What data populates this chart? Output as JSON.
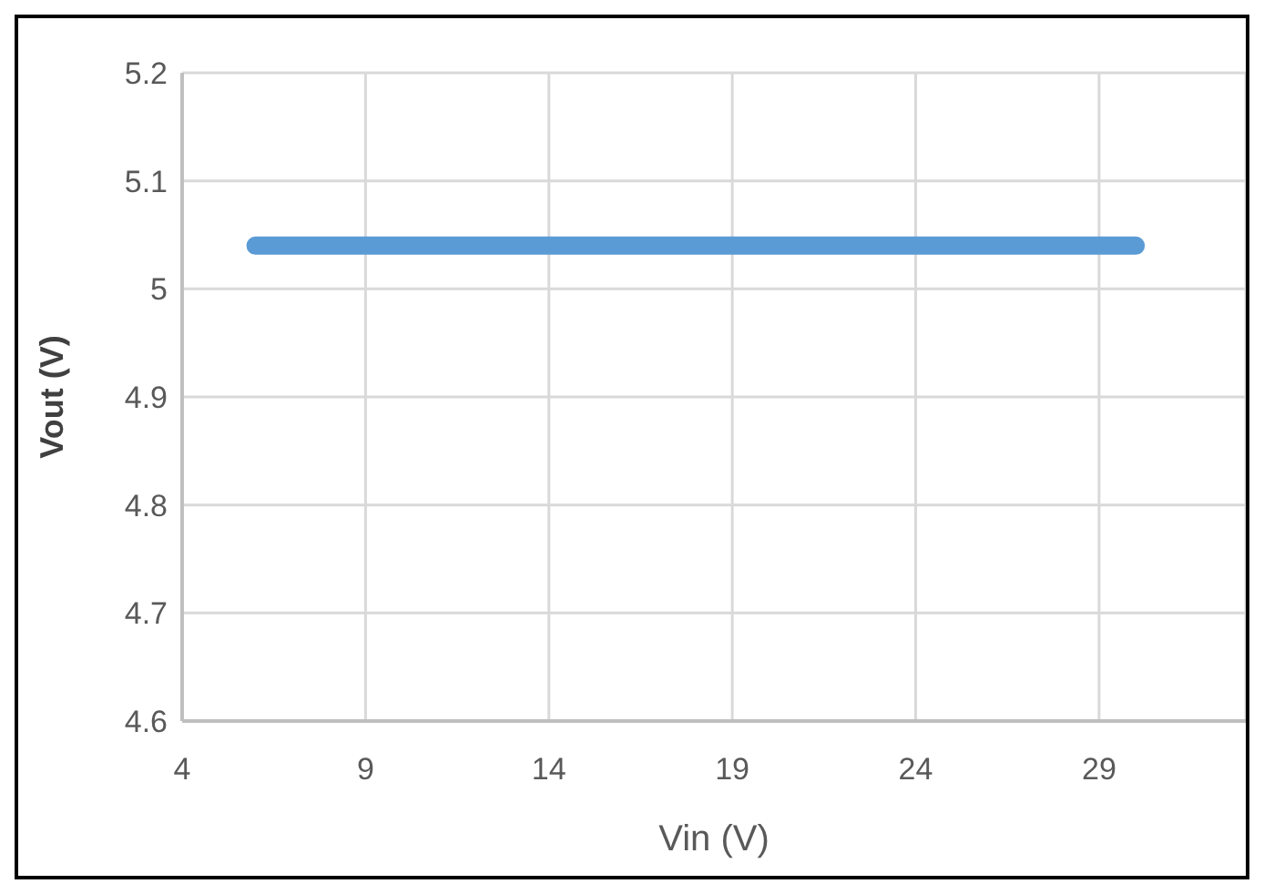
{
  "chart_data": {
    "type": "line",
    "xlabel": "Vin (V)",
    "ylabel": "Vout (V)",
    "x": [
      6,
      30
    ],
    "series": [
      {
        "color": "#5b9bd5",
        "values": [
          5.04,
          5.04
        ]
      }
    ],
    "xlim": [
      4,
      33
    ],
    "xticks": [
      4,
      9,
      14,
      19,
      24,
      29
    ],
    "ylim": [
      4.6,
      5.2
    ],
    "yticks": [
      4.6,
      4.7,
      4.8,
      4.9,
      5,
      5.1,
      5.2
    ],
    "grid": true,
    "marker": "none",
    "line_style": "solid"
  }
}
